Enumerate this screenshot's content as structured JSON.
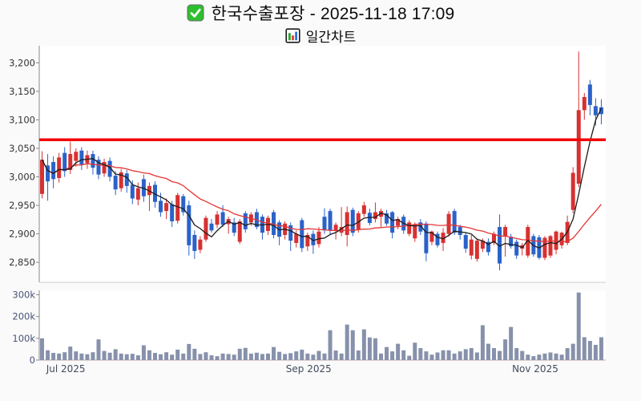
{
  "header": {
    "title": "한국수출포장 - 2025-11-18 17:09",
    "subtitle": "일간차트",
    "check_icon": "green-checkbox",
    "subtitle_icon": "bar-chart"
  },
  "colors": {
    "up_candle": "#d73131",
    "down_candle": "#2a62c9",
    "ma_short": "#1c1c1c",
    "ma_long": "#e43535",
    "reference_line": "#f50505",
    "volume_bar": "#8791ab",
    "price_tick_text": "#333333",
    "volume_tick_text": "#49537a",
    "x_tick_text": "#414b5e",
    "plot_bg": "#ffffff",
    "page_bg": "#fafafa",
    "spine": "#8a8a8a"
  },
  "chart_data": {
    "type": "candlestick_with_volume",
    "title": "한국수출포장 - 2025-11-18 17:09",
    "subtitle": "일간차트",
    "legend_position": "none",
    "grid": false,
    "reference_price": 3065,
    "moving_averages": {
      "short_period": 5,
      "long_period": 20
    },
    "price_axis": {
      "min": 2815,
      "max": 3230,
      "ticks": [
        {
          "label": "2,850",
          "value": 2850
        },
        {
          "label": "2,900",
          "value": 2900
        },
        {
          "label": "2,950",
          "value": 2950
        },
        {
          "label": "3,000",
          "value": 3000
        },
        {
          "label": "3,050",
          "value": 3050
        },
        {
          "label": "3,100",
          "value": 3100
        },
        {
          "label": "3,150",
          "value": 3150
        },
        {
          "label": "3,200",
          "value": 3200
        }
      ]
    },
    "volume_axis": {
      "max_k": 320,
      "ticks": [
        {
          "label": "0",
          "value_k": 0
        },
        {
          "label": "100k",
          "value_k": 100
        },
        {
          "label": "200k",
          "value_k": 200
        },
        {
          "label": "300k",
          "value_k": 300
        }
      ]
    },
    "x_ticks": [
      {
        "label": "Jul 2025",
        "index": 4.2
      },
      {
        "label": "Sep 2025",
        "index": 47.2
      },
      {
        "label": "Nov 2025",
        "index": 87.3
      }
    ],
    "candles_format": [
      "open",
      "high",
      "low",
      "close"
    ],
    "candles": [
      [
        2970,
        3045,
        2962,
        3030
      ],
      [
        3020,
        3040,
        2958,
        2992
      ],
      [
        3026,
        3036,
        2980,
        2996
      ],
      [
        2998,
        3042,
        2990,
        3034
      ],
      [
        3042,
        3052,
        3000,
        3010
      ],
      [
        3012,
        3062,
        3005,
        3040
      ],
      [
        3028,
        3050,
        3018,
        3044
      ],
      [
        3046,
        3052,
        3012,
        3022
      ],
      [
        3024,
        3046,
        3014,
        3038
      ],
      [
        3040,
        3046,
        3004,
        3016
      ],
      [
        3030,
        3036,
        2996,
        3004
      ],
      [
        3006,
        3032,
        3000,
        3026
      ],
      [
        3028,
        3034,
        2992,
        3000
      ],
      [
        3002,
        3010,
        2968,
        2978
      ],
      [
        2980,
        3014,
        2974,
        3008
      ],
      [
        3006,
        3012,
        2972,
        2984
      ],
      [
        2986,
        2994,
        2952,
        2962
      ],
      [
        2960,
        2990,
        2950,
        2980
      ],
      [
        2996,
        3004,
        2956,
        2966
      ],
      [
        2968,
        2990,
        2940,
        2984
      ],
      [
        2986,
        2992,
        2946,
        2956
      ],
      [
        2958,
        2972,
        2930,
        2938
      ],
      [
        2940,
        2962,
        2926,
        2954
      ],
      [
        2952,
        2958,
        2912,
        2922
      ],
      [
        2923,
        2972,
        2918,
        2968
      ],
      [
        2966,
        2970,
        2932,
        2938
      ],
      [
        2950,
        2958,
        2862,
        2880
      ],
      [
        2898,
        2906,
        2856,
        2870
      ],
      [
        2872,
        2896,
        2866,
        2890
      ],
      [
        2890,
        2932,
        2886,
        2928
      ],
      [
        2918,
        2926,
        2902,
        2906
      ],
      [
        2916,
        2940,
        2910,
        2934
      ],
      [
        2938,
        2950,
        2912,
        2916
      ],
      [
        2917,
        2930,
        2900,
        2926
      ],
      [
        2920,
        2928,
        2896,
        2902
      ],
      [
        2886,
        2926,
        2882,
        2922
      ],
      [
        2936,
        2940,
        2902,
        2908
      ],
      [
        2920,
        2938,
        2914,
        2934
      ],
      [
        2938,
        2944,
        2908,
        2912
      ],
      [
        2930,
        2934,
        2890,
        2902
      ],
      [
        2905,
        2932,
        2898,
        2928
      ],
      [
        2938,
        2942,
        2892,
        2898
      ],
      [
        2920,
        2924,
        2880,
        2895
      ],
      [
        2898,
        2922,
        2890,
        2918
      ],
      [
        2915,
        2920,
        2870,
        2888
      ],
      [
        2884,
        2906,
        2876,
        2900
      ],
      [
        2924,
        2928,
        2868,
        2875
      ],
      [
        2878,
        2902,
        2870,
        2898
      ],
      [
        2900,
        2906,
        2865,
        2880
      ],
      [
        2882,
        2912,
        2876,
        2904
      ],
      [
        2930,
        2945,
        2900,
        2906
      ],
      [
        2940,
        2944,
        2898,
        2906
      ],
      [
        2906,
        2920,
        2890,
        2916
      ],
      [
        2902,
        2947,
        2896,
        2912
      ],
      [
        2898,
        2948,
        2878,
        2938
      ],
      [
        2942,
        2946,
        2896,
        2902
      ],
      [
        2908,
        2940,
        2902,
        2936
      ],
      [
        2935,
        2956,
        2930,
        2950
      ],
      [
        2937,
        2944,
        2915,
        2919
      ],
      [
        2926,
        2955,
        2920,
        2938
      ],
      [
        2930,
        2944,
        2912,
        2940
      ],
      [
        2936,
        2942,
        2914,
        2918
      ],
      [
        2938,
        2940,
        2892,
        2902
      ],
      [
        2914,
        2930,
        2908,
        2926
      ],
      [
        2930,
        2934,
        2900,
        2906
      ],
      [
        2900,
        2924,
        2896,
        2920
      ],
      [
        2892,
        2920,
        2886,
        2916
      ],
      [
        2920,
        2926,
        2898,
        2904
      ],
      [
        2918,
        2922,
        2852,
        2866
      ],
      [
        2886,
        2906,
        2880,
        2904
      ],
      [
        2900,
        2904,
        2876,
        2880
      ],
      [
        2884,
        2910,
        2870,
        2902
      ],
      [
        2900,
        2940,
        2895,
        2935
      ],
      [
        2940,
        2944,
        2898,
        2902
      ],
      [
        2912,
        2916,
        2890,
        2898
      ],
      [
        2898,
        2902,
        2867,
        2874
      ],
      [
        2862,
        2898,
        2855,
        2890
      ],
      [
        2856,
        2892,
        2851,
        2888
      ],
      [
        2874,
        2892,
        2868,
        2888
      ],
      [
        2886,
        2892,
        2862,
        2868
      ],
      [
        2884,
        2904,
        2880,
        2900
      ],
      [
        2912,
        2934,
        2836,
        2848
      ],
      [
        2895,
        2916,
        2860,
        2912
      ],
      [
        2895,
        2900,
        2874,
        2878
      ],
      [
        2886,
        2890,
        2856,
        2862
      ],
      [
        2874,
        2884,
        2862,
        2880
      ],
      [
        2862,
        2916,
        2858,
        2912
      ],
      [
        2896,
        2900,
        2860,
        2864
      ],
      [
        2894,
        2898,
        2855,
        2858
      ],
      [
        2858,
        2896,
        2854,
        2893
      ],
      [
        2862,
        2898,
        2858,
        2896
      ],
      [
        2872,
        2906,
        2864,
        2904
      ],
      [
        2880,
        2904,
        2874,
        2902
      ],
      [
        2884,
        2932,
        2880,
        2921
      ],
      [
        2942,
        3017,
        2936,
        3007
      ],
      [
        2988,
        3220,
        2982,
        3117
      ],
      [
        3117,
        3147,
        3100,
        3140
      ],
      [
        3162,
        3170,
        3108,
        3126
      ],
      [
        3124,
        3138,
        3090,
        3108
      ],
      [
        3122,
        3136,
        3092,
        3110
      ]
    ],
    "volumes_k": [
      100,
      45,
      33,
      30,
      36,
      62,
      40,
      30,
      27,
      36,
      95,
      42,
      34,
      50,
      30,
      27,
      29,
      22,
      68,
      45,
      33,
      27,
      36,
      25,
      48,
      30,
      74,
      52,
      28,
      36,
      22,
      18,
      30,
      28,
      25,
      52,
      56,
      30,
      34,
      28,
      30,
      60,
      38,
      28,
      32,
      40,
      48,
      30,
      25,
      42,
      30,
      137,
      44,
      30,
      163,
      137,
      44,
      141,
      104,
      100,
      30,
      60,
      40,
      75,
      45,
      20,
      80,
      55,
      40,
      25,
      35,
      45,
      45,
      30,
      40,
      50,
      55,
      35,
      160,
      75,
      55,
      42,
      95,
      152,
      55,
      42,
      25,
      18,
      25,
      30,
      35,
      30,
      25,
      55,
      75,
      310,
      105,
      88,
      70,
      105
    ]
  }
}
